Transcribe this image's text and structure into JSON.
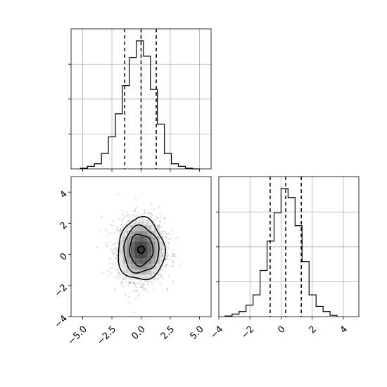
{
  "chart_data": [
    {
      "panel": "marginal x0",
      "type": "histogram-step",
      "xlim": [
        -6.0,
        6.0
      ],
      "grid": true,
      "bins": [
        -5.2,
        -4.6,
        -4.0,
        -3.4,
        -2.8,
        -2.2,
        -1.6,
        -1.0,
        -0.4,
        0.2,
        0.8,
        1.4,
        2.0,
        2.6,
        3.2,
        3.8,
        4.4,
        5.0
      ],
      "relative_counts": [
        0.005,
        0.02,
        0.04,
        0.12,
        0.25,
        0.43,
        0.65,
        0.87,
        1.0,
        0.88,
        0.62,
        0.35,
        0.12,
        0.04,
        0.02,
        0.005,
        0.0
      ],
      "quantiles": [
        -1.4,
        0.0,
        1.3
      ]
    },
    {
      "panel": "joint x0 vs x1",
      "type": "scatter+contour",
      "xlim": [
        -6.0,
        6.0
      ],
      "ylim": [
        -4.0,
        5.0
      ],
      "xticks": [
        "−5.0",
        "−2.5",
        "0.0",
        "2.5",
        "5.0"
      ],
      "xtick_values": [
        -5.0,
        -2.5,
        0.0,
        2.5,
        5.0
      ],
      "yticks": [
        "−4",
        "−2",
        "0",
        "2",
        "4"
      ],
      "ytick_values": [
        -4,
        -2,
        0,
        2,
        4
      ],
      "center": [
        0.0,
        0.3
      ],
      "contour_radii_sigma": [
        0.5,
        1.0,
        1.5,
        2.0
      ],
      "density_grid_cells": [
        -1.5,
        1.5
      ]
    },
    {
      "panel": "marginal x1",
      "type": "histogram-step",
      "xlim": [
        -4.0,
        5.0
      ],
      "xticks": [
        "−4",
        "−2",
        "0",
        "2",
        "4"
      ],
      "xtick_values": [
        -4,
        -2,
        0,
        2,
        4
      ],
      "grid": true,
      "bins": [
        -3.6,
        -3.15,
        -2.7,
        -2.25,
        -1.8,
        -1.35,
        -0.9,
        -0.45,
        0.0,
        0.45,
        0.9,
        1.35,
        1.8,
        2.25,
        2.7,
        3.15,
        3.6
      ],
      "relative_counts": [
        0.005,
        0.02,
        0.04,
        0.09,
        0.17,
        0.36,
        0.59,
        0.81,
        1.0,
        0.93,
        0.71,
        0.43,
        0.17,
        0.08,
        0.04,
        0.01
      ],
      "quantiles": [
        -0.7,
        0.3,
        1.3
      ]
    }
  ]
}
